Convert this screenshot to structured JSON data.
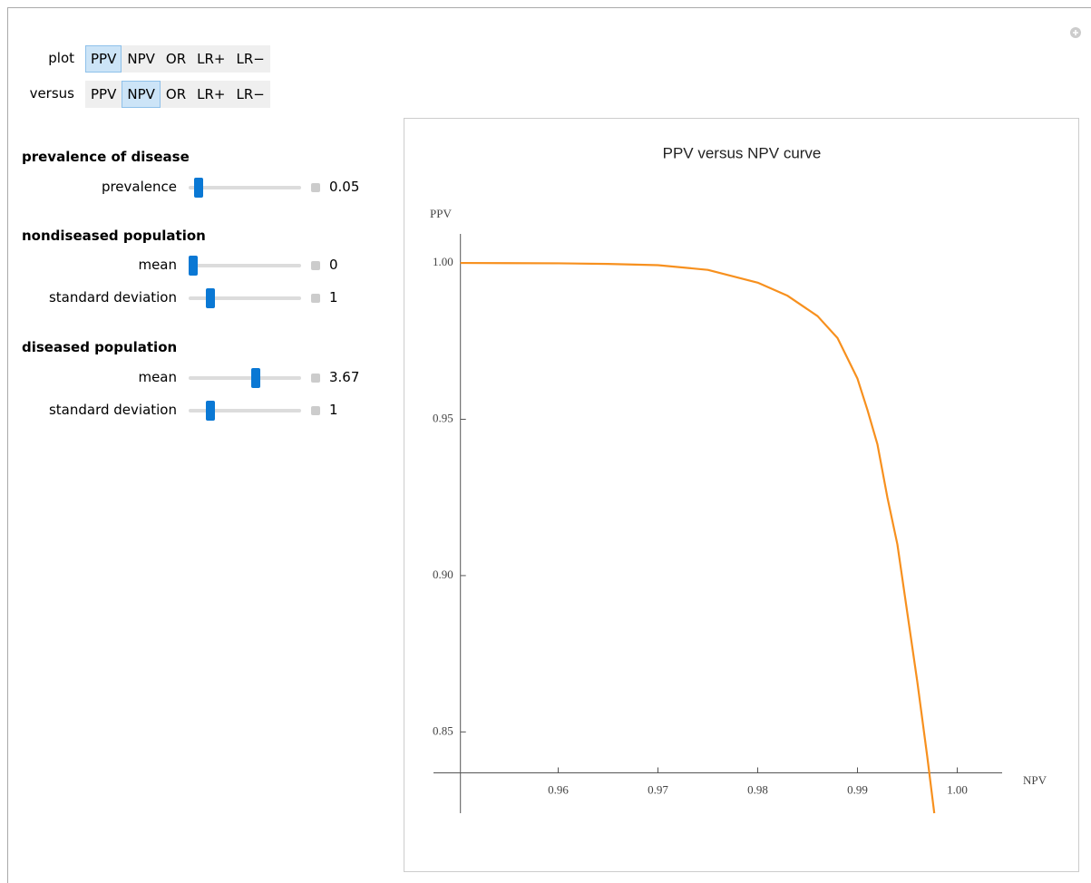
{
  "controls": [
    {
      "label": "plot",
      "options": [
        "PPV",
        "NPV",
        "OR",
        "LR+",
        "LR−"
      ],
      "selected": 0
    },
    {
      "label": "versus",
      "options": [
        "PPV",
        "NPV",
        "OR",
        "LR+",
        "LR−"
      ],
      "selected": 1
    }
  ],
  "sections": [
    {
      "title": "prevalence of disease",
      "sliders": [
        {
          "label": "prevalence",
          "value": 0.05
        }
      ]
    },
    {
      "title": "nondiseased population",
      "sliders": [
        {
          "label": "mean",
          "value": 0
        },
        {
          "label": "standard deviation",
          "value": 1
        }
      ]
    },
    {
      "title": "diseased population",
      "sliders": [
        {
          "label": "mean",
          "value": 3.67
        },
        {
          "label": "standard deviation",
          "value": 1
        }
      ]
    }
  ],
  "chart_data": {
    "type": "line",
    "title": "PPV versus NPV curve",
    "x_label": "NPV",
    "y_label": "PPV",
    "color": "#f7901e",
    "x": [
      0.9502,
      0.955,
      0.96,
      0.965,
      0.97,
      0.975,
      0.98,
      0.983,
      0.986,
      0.988,
      0.99,
      0.991,
      0.992,
      0.993,
      0.994,
      0.995,
      0.996,
      0.997,
      0.9977
    ],
    "values": [
      1.0,
      0.99995,
      0.9999,
      0.9997,
      0.9993,
      0.9978,
      0.9937,
      0.9895,
      0.983,
      0.976,
      0.963,
      0.953,
      0.942,
      0.925,
      0.91,
      0.888,
      0.866,
      0.842,
      0.824
    ],
    "xlim": [
      0.9475,
      1.0045
    ],
    "ylim": [
      0.824,
      1.0093
    ],
    "xticks": [
      0.96,
      0.97,
      0.98,
      0.99,
      {
        "value": 1,
        "label": "1.00"
      }
    ],
    "yticks": [
      0.85,
      {
        "value": 0.9,
        "label": "0.90"
      },
      0.95,
      {
        "value": 1,
        "label": "1.00"
      }
    ],
    "axes_origin": [
      0.9502,
      0.8369
    ]
  }
}
